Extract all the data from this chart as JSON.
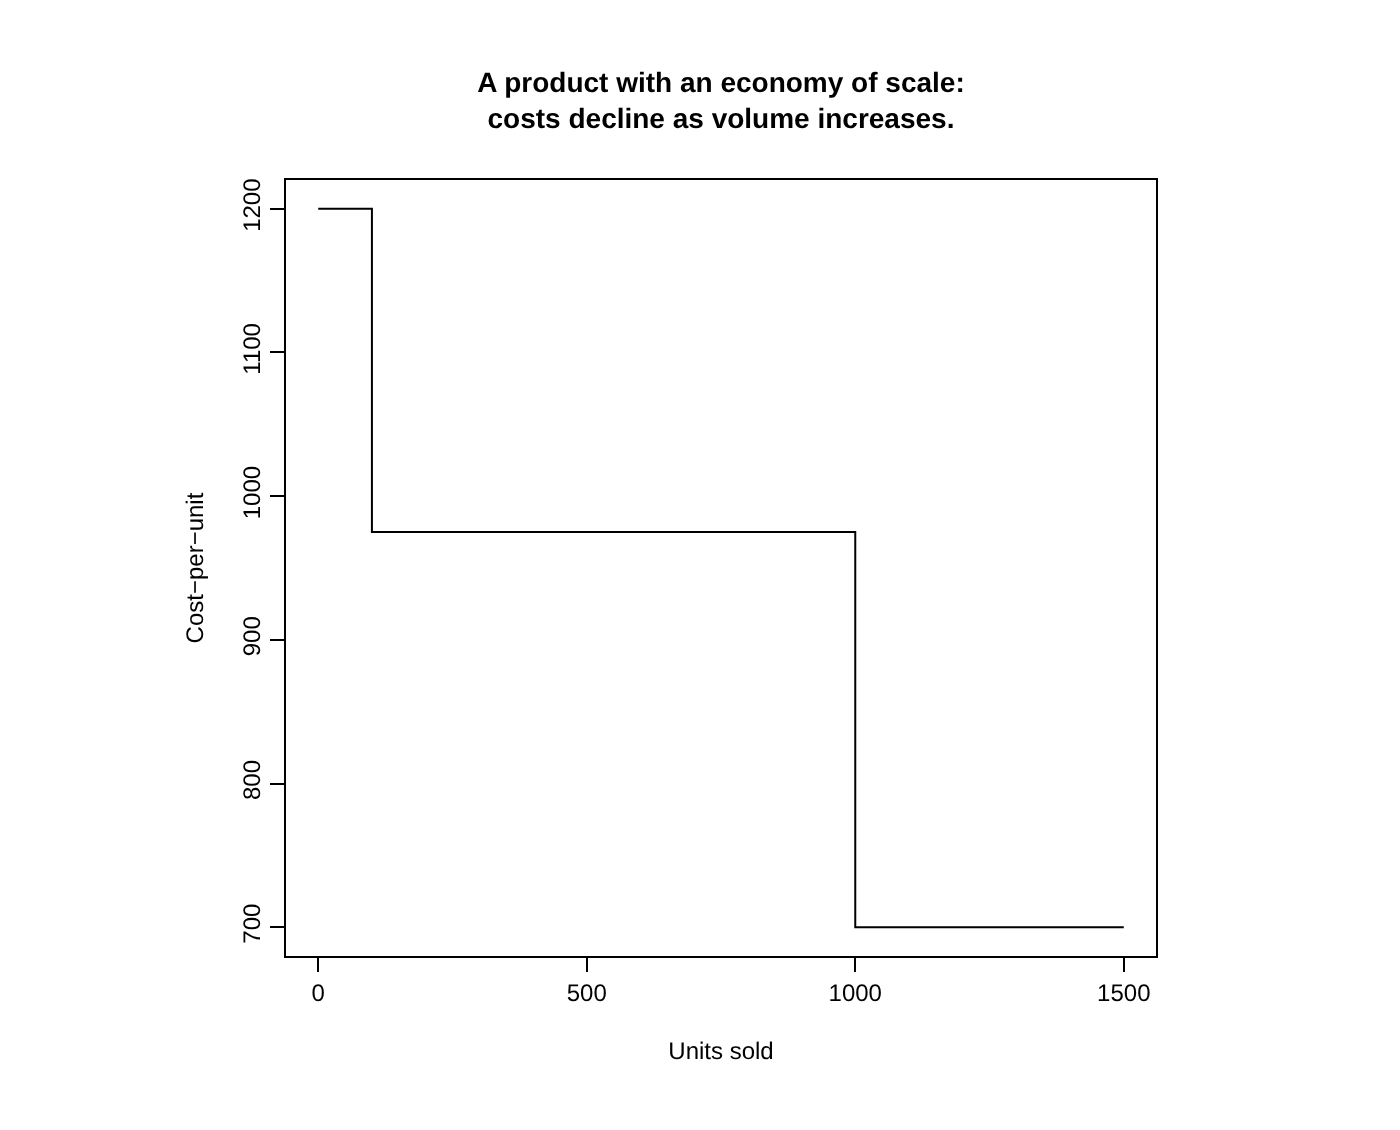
{
  "chart_data": {
    "type": "step",
    "title": "A product with an economy of scale:\ncosts decline as volume increases.",
    "xlabel": "Units sold",
    "ylabel": "Cost−per−unit",
    "x": [
      0,
      100,
      1000,
      1500
    ],
    "values": [
      1200,
      975,
      700,
      700
    ],
    "color": "#000000",
    "line_style": "solid",
    "xlim": [
      -60,
      1560
    ],
    "xticks": [
      0,
      500,
      1000,
      1500
    ],
    "ylim": [
      680,
      1220
    ],
    "yticks": [
      700,
      800,
      900,
      1000,
      1100,
      1200
    ]
  }
}
